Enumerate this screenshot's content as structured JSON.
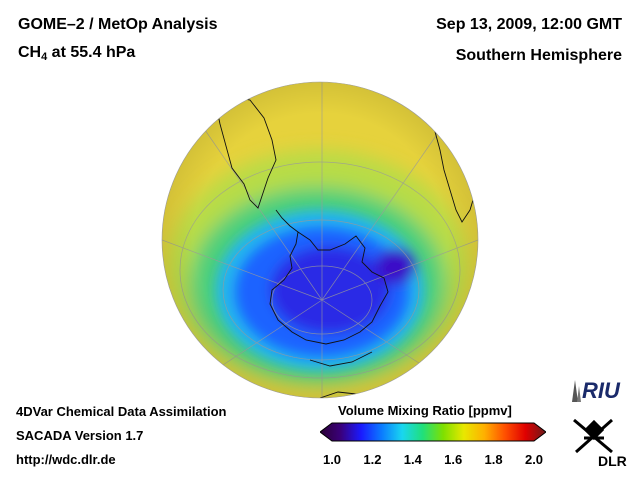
{
  "header": {
    "title_line1": "GOME–2 / MetOp Analysis",
    "species_main": "CH",
    "species_sub": "4",
    "species_rest": " at 55.4 hPa",
    "date": "Sep 13, 2009, 12:00 GMT",
    "region": "Southern Hemisphere"
  },
  "footer": {
    "line1": "4DVar Chemical Data Assimilation",
    "line2": "SACADA Version 1.7",
    "line3": "http://wdc.dlr.de"
  },
  "colorbar": {
    "title": "Volume Mixing Ratio [ppmv]",
    "min": 1.0,
    "max": 2.0,
    "ticks": [
      "1.0",
      "1.2",
      "1.4",
      "1.6",
      "1.8",
      "2.0"
    ],
    "colors": [
      "#2b0033",
      "#3a007a",
      "#1a1aff",
      "#0b7bff",
      "#19d6f0",
      "#20e07a",
      "#7fe000",
      "#e8e800",
      "#ffb000",
      "#ff5000",
      "#e00000",
      "#6a1a1a"
    ]
  },
  "logos": {
    "riu_text": "RIU",
    "dlr_text": "DLR"
  },
  "map": {
    "projection": "orthographic, south polar view",
    "field_colors": {
      "background": "#e6d23c",
      "outer_band": "#b8dc46",
      "ring": "#4ccf7c",
      "vortex_edge": "#23b4f0",
      "vortex": "#1e64ff",
      "vortex_core": "#2a2ae6",
      "minimum": "#3b10c8"
    }
  }
}
